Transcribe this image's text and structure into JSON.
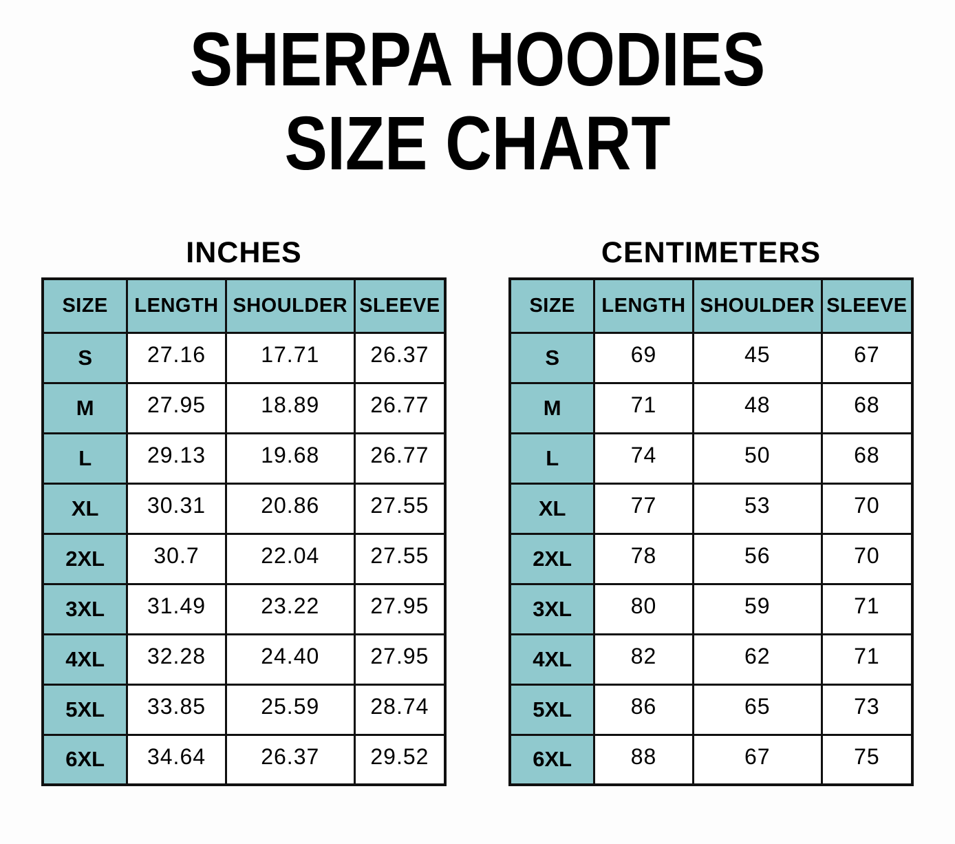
{
  "title": {
    "line1": "SHERPA HOODIES",
    "line2": "SIZE CHART"
  },
  "colors": {
    "header_bg": "#90c9ce",
    "border": "#101010",
    "text": "#000000",
    "page_bg": "#fdfdfd"
  },
  "tables": [
    {
      "heading": "INCHES",
      "columns": [
        "SIZE",
        "LENGTH",
        "SHOULDER",
        "SLEEVE"
      ],
      "rows": [
        [
          "S",
          "27.16",
          "17.71",
          "26.37"
        ],
        [
          "M",
          "27.95",
          "18.89",
          "26.77"
        ],
        [
          "L",
          "29.13",
          "19.68",
          "26.77"
        ],
        [
          "XL",
          "30.31",
          "20.86",
          "27.55"
        ],
        [
          "2XL",
          "30.7",
          "22.04",
          "27.55"
        ],
        [
          "3XL",
          "31.49",
          "23.22",
          "27.95"
        ],
        [
          "4XL",
          "32.28",
          "24.40",
          "27.95"
        ],
        [
          "5XL",
          "33.85",
          "25.59",
          "28.74"
        ],
        [
          "6XL",
          "34.64",
          "26.37",
          "29.52"
        ]
      ]
    },
    {
      "heading": "CENTIMETERS",
      "columns": [
        "SIZE",
        "LENGTH",
        "SHOULDER",
        "SLEEVE"
      ],
      "rows": [
        [
          "S",
          "69",
          "45",
          "67"
        ],
        [
          "M",
          "71",
          "48",
          "68"
        ],
        [
          "L",
          "74",
          "50",
          "68"
        ],
        [
          "XL",
          "77",
          "53",
          "70"
        ],
        [
          "2XL",
          "78",
          "56",
          "70"
        ],
        [
          "3XL",
          "80",
          "59",
          "71"
        ],
        [
          "4XL",
          "82",
          "62",
          "71"
        ],
        [
          "5XL",
          "86",
          "65",
          "73"
        ],
        [
          "6XL",
          "88",
          "67",
          "75"
        ]
      ]
    }
  ],
  "chart_data": [
    {
      "type": "table",
      "title": "SHERPA HOODIES SIZE CHART — INCHES",
      "columns": [
        "SIZE",
        "LENGTH",
        "SHOULDER",
        "SLEEVE"
      ],
      "rows": [
        {
          "size": "S",
          "length": 27.16,
          "shoulder": 17.71,
          "sleeve": 26.37
        },
        {
          "size": "M",
          "length": 27.95,
          "shoulder": 18.89,
          "sleeve": 26.77
        },
        {
          "size": "L",
          "length": 29.13,
          "shoulder": 19.68,
          "sleeve": 26.77
        },
        {
          "size": "XL",
          "length": 30.31,
          "shoulder": 20.86,
          "sleeve": 27.55
        },
        {
          "size": "2XL",
          "length": 30.7,
          "shoulder": 22.04,
          "sleeve": 27.55
        },
        {
          "size": "3XL",
          "length": 31.49,
          "shoulder": 23.22,
          "sleeve": 27.95
        },
        {
          "size": "4XL",
          "length": 32.28,
          "shoulder": 24.4,
          "sleeve": 27.95
        },
        {
          "size": "5XL",
          "length": 33.85,
          "shoulder": 25.59,
          "sleeve": 28.74
        },
        {
          "size": "6XL",
          "length": 34.64,
          "shoulder": 26.37,
          "sleeve": 29.52
        }
      ]
    },
    {
      "type": "table",
      "title": "SHERPA HOODIES SIZE CHART — CENTIMETERS",
      "columns": [
        "SIZE",
        "LENGTH",
        "SHOULDER",
        "SLEEVE"
      ],
      "rows": [
        {
          "size": "S",
          "length": 69,
          "shoulder": 45,
          "sleeve": 67
        },
        {
          "size": "M",
          "length": 71,
          "shoulder": 48,
          "sleeve": 68
        },
        {
          "size": "L",
          "length": 74,
          "shoulder": 50,
          "sleeve": 68
        },
        {
          "size": "XL",
          "length": 77,
          "shoulder": 53,
          "sleeve": 70
        },
        {
          "size": "2XL",
          "length": 78,
          "shoulder": 56,
          "sleeve": 70
        },
        {
          "size": "3XL",
          "length": 80,
          "shoulder": 59,
          "sleeve": 71
        },
        {
          "size": "4XL",
          "length": 82,
          "shoulder": 62,
          "sleeve": 71
        },
        {
          "size": "5XL",
          "length": 86,
          "shoulder": 65,
          "sleeve": 73
        },
        {
          "size": "6XL",
          "length": 88,
          "shoulder": 67,
          "sleeve": 75
        }
      ]
    }
  ]
}
